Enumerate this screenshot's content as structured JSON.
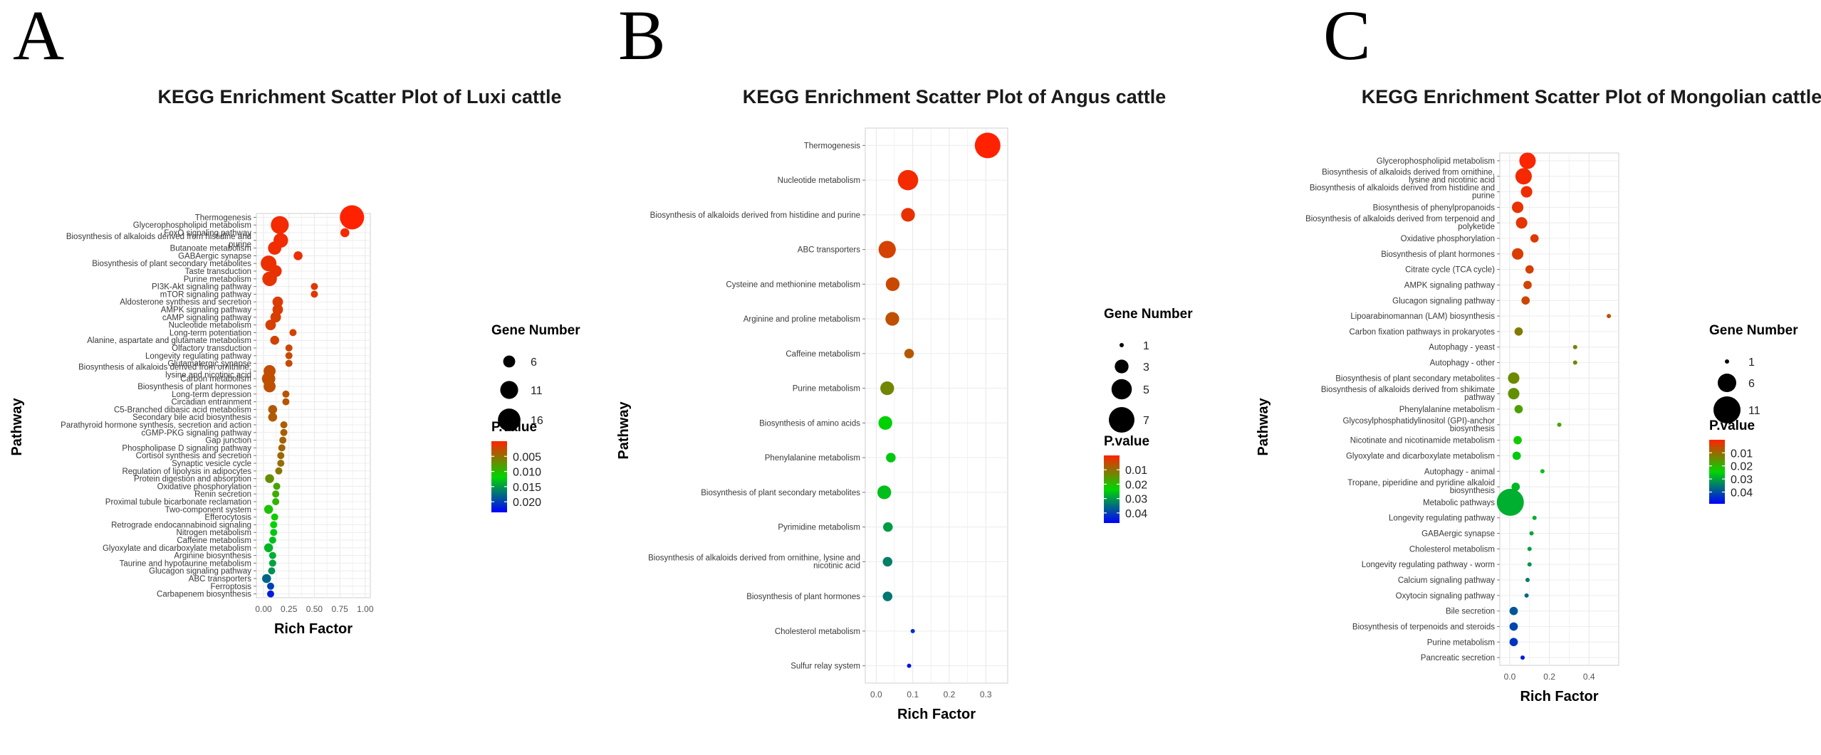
{
  "chart_data": [
    {
      "id": "A",
      "panel_label": "A",
      "type": "scatter",
      "title": "KEGG Enrichment Scatter Plot of Luxi cattle",
      "xlabel": "Rich Factor",
      "ylabel": "Pathway",
      "xlim": [
        -0.07,
        1.05
      ],
      "xticks": [
        0.0,
        0.25,
        0.5,
        0.75,
        1.0
      ],
      "xtick_labels": [
        "0.00",
        "0.25",
        "0.50",
        "0.75",
        "1.00"
      ],
      "size_legend": {
        "title": "Gene Number",
        "values": [
          6,
          11,
          16
        ]
      },
      "size_range": [
        3,
        18
      ],
      "color_legend": {
        "title": "P.value",
        "min": 0.0,
        "max": 0.0235,
        "ticks": [
          0.005,
          0.01,
          0.015,
          0.02
        ],
        "tick_labels": [
          "0.005",
          "0.010",
          "0.015",
          "0.020"
        ]
      },
      "points": [
        {
          "pathway": "Thermogenesis",
          "rich_factor": 0.87,
          "gene_number": 18,
          "pvalue": 0.0
        },
        {
          "pathway": "Glycerophospholipid metabolism",
          "rich_factor": 0.16,
          "gene_number": 11,
          "pvalue": 0.0005
        },
        {
          "pathway": "FoxO signaling pathway",
          "rich_factor": 0.8,
          "gene_number": 4,
          "pvalue": 0.0005
        },
        {
          "pathway": "Biosynthesis of alkaloids derived from histidine and purine",
          "rich_factor": 0.17,
          "gene_number": 8,
          "pvalue": 0.0006
        },
        {
          "pathway": "Butanoate metabolism",
          "rich_factor": 0.11,
          "gene_number": 7,
          "pvalue": 0.0007
        },
        {
          "pathway": "GABAergic synapse",
          "rich_factor": 0.34,
          "gene_number": 4,
          "pvalue": 0.0008
        },
        {
          "pathway": "Biosynthesis of plant secondary metabolites",
          "rich_factor": 0.05,
          "gene_number": 9,
          "pvalue": 0.0009
        },
        {
          "pathway": "Taste transduction",
          "rich_factor": 0.12,
          "gene_number": 6,
          "pvalue": 0.001
        },
        {
          "pathway": "Purine metabolism",
          "rich_factor": 0.06,
          "gene_number": 8,
          "pvalue": 0.0011
        },
        {
          "pathway": "PI3K-Akt signaling pathway",
          "rich_factor": 0.5,
          "gene_number": 3,
          "pvalue": 0.0014
        },
        {
          "pathway": "mTOR signaling pathway",
          "rich_factor": 0.5,
          "gene_number": 3,
          "pvalue": 0.0014
        },
        {
          "pathway": "Aldosterone synthesis and secretion",
          "rich_factor": 0.14,
          "gene_number": 5,
          "pvalue": 0.0016
        },
        {
          "pathway": "AMPK signaling pathway",
          "rich_factor": 0.14,
          "gene_number": 5,
          "pvalue": 0.0017
        },
        {
          "pathway": "cAMP signaling pathway",
          "rich_factor": 0.12,
          "gene_number": 5,
          "pvalue": 0.0018
        },
        {
          "pathway": "Nucleotide metabolism",
          "rich_factor": 0.07,
          "gene_number": 5,
          "pvalue": 0.0019
        },
        {
          "pathway": "Long-term potentiation",
          "rich_factor": 0.29,
          "gene_number": 3,
          "pvalue": 0.002
        },
        {
          "pathway": "Alanine, aspartate and glutamate metabolism",
          "rich_factor": 0.11,
          "gene_number": 4,
          "pvalue": 0.0021
        },
        {
          "pathway": "Olfactory transduction",
          "rich_factor": 0.25,
          "gene_number": 3,
          "pvalue": 0.0025
        },
        {
          "pathway": "Longevity regulating pathway",
          "rich_factor": 0.25,
          "gene_number": 3,
          "pvalue": 0.0026
        },
        {
          "pathway": "Glutamatergic synapse",
          "rich_factor": 0.25,
          "gene_number": 3,
          "pvalue": 0.0027
        },
        {
          "pathway": "Biosynthesis of alkaloids derived from ornithine, lysine and nicotinic acid",
          "rich_factor": 0.06,
          "gene_number": 6,
          "pvalue": 0.0028
        },
        {
          "pathway": "Carbon metabolism",
          "rich_factor": 0.05,
          "gene_number": 7,
          "pvalue": 0.0029
        },
        {
          "pathway": "Biosynthesis of plant hormones",
          "rich_factor": 0.06,
          "gene_number": 6,
          "pvalue": 0.003
        },
        {
          "pathway": "Long-term depression",
          "rich_factor": 0.22,
          "gene_number": 3,
          "pvalue": 0.0032
        },
        {
          "pathway": "Circadian entrainment",
          "rich_factor": 0.22,
          "gene_number": 3,
          "pvalue": 0.0033
        },
        {
          "pathway": "C5-Branched dibasic acid metabolism",
          "rich_factor": 0.09,
          "gene_number": 4,
          "pvalue": 0.0036
        },
        {
          "pathway": "Secondary bile acid biosynthesis",
          "rich_factor": 0.09,
          "gene_number": 4,
          "pvalue": 0.0037
        },
        {
          "pathway": "Parathyroid hormone synthesis, secretion and action",
          "rich_factor": 0.2,
          "gene_number": 3,
          "pvalue": 0.0038
        },
        {
          "pathway": "cGMP-PKG signaling pathway",
          "rich_factor": 0.2,
          "gene_number": 3,
          "pvalue": 0.004
        },
        {
          "pathway": "Gap junction",
          "rich_factor": 0.19,
          "gene_number": 3,
          "pvalue": 0.0042
        },
        {
          "pathway": "Phospholipase D signaling pathway",
          "rich_factor": 0.18,
          "gene_number": 3,
          "pvalue": 0.0044
        },
        {
          "pathway": "Cortisol synthesis and secretion",
          "rich_factor": 0.17,
          "gene_number": 3,
          "pvalue": 0.0046
        },
        {
          "pathway": "Synaptic vesicle cycle",
          "rich_factor": 0.17,
          "gene_number": 3,
          "pvalue": 0.0048
        },
        {
          "pathway": "Regulation of lipolysis in adipocytes",
          "rich_factor": 0.15,
          "gene_number": 3,
          "pvalue": 0.0055
        },
        {
          "pathway": "Protein digestion and absorption",
          "rich_factor": 0.06,
          "gene_number": 4,
          "pvalue": 0.007
        },
        {
          "pathway": "Oxidative phosphorylation",
          "rich_factor": 0.13,
          "gene_number": 3,
          "pvalue": 0.0085
        },
        {
          "pathway": "Renin secretion",
          "rich_factor": 0.12,
          "gene_number": 3,
          "pvalue": 0.009
        },
        {
          "pathway": "Proximal tubule bicarbonate reclamation",
          "rich_factor": 0.12,
          "gene_number": 3,
          "pvalue": 0.0095
        },
        {
          "pathway": "Two-component system",
          "rich_factor": 0.05,
          "gene_number": 4,
          "pvalue": 0.0105
        },
        {
          "pathway": "Efferocytosis",
          "rich_factor": 0.11,
          "gene_number": 3,
          "pvalue": 0.011
        },
        {
          "pathway": "Retrograde endocannabinoid signaling",
          "rich_factor": 0.1,
          "gene_number": 3,
          "pvalue": 0.0115
        },
        {
          "pathway": "Nitrogen metabolism",
          "rich_factor": 0.1,
          "gene_number": 3,
          "pvalue": 0.0125
        },
        {
          "pathway": "Caffeine metabolism",
          "rich_factor": 0.09,
          "gene_number": 3,
          "pvalue": 0.013
        },
        {
          "pathway": "Glyoxylate and dicarboxylate metabolism",
          "rich_factor": 0.05,
          "gene_number": 4,
          "pvalue": 0.0135
        },
        {
          "pathway": "Arginine biosynthesis",
          "rich_factor": 0.09,
          "gene_number": 3,
          "pvalue": 0.014
        },
        {
          "pathway": "Taurine and hypotaurine metabolism",
          "rich_factor": 0.09,
          "gene_number": 3,
          "pvalue": 0.0145
        },
        {
          "pathway": "Glucagon signaling pathway",
          "rich_factor": 0.08,
          "gene_number": 3,
          "pvalue": 0.0155
        },
        {
          "pathway": "ABC transporters",
          "rich_factor": 0.03,
          "gene_number": 4,
          "pvalue": 0.018
        },
        {
          "pathway": "Ferroptosis",
          "rich_factor": 0.07,
          "gene_number": 3,
          "pvalue": 0.02
        },
        {
          "pathway": "Carbapenem biosynthesis",
          "rich_factor": 0.07,
          "gene_number": 3,
          "pvalue": 0.022
        }
      ]
    },
    {
      "id": "B",
      "panel_label": "B",
      "type": "scatter",
      "title": "KEGG Enrichment Scatter Plot of Angus cattle",
      "xlabel": "Rich Factor",
      "ylabel": "Pathway",
      "xlim": [
        -0.03,
        0.36
      ],
      "xticks": [
        0.0,
        0.1,
        0.2,
        0.3
      ],
      "xtick_labels": [
        "0.0",
        "0.1",
        "0.2",
        "0.3"
      ],
      "size_legend": {
        "title": "Gene Number",
        "values": [
          1,
          3,
          5,
          7
        ]
      },
      "size_range": [
        1,
        7
      ],
      "color_legend": {
        "title": "P.value",
        "min": 0.0,
        "max": 0.047,
        "ticks": [
          0.01,
          0.02,
          0.03,
          0.04
        ],
        "tick_labels": [
          "0.01",
          "0.02",
          "0.03",
          "0.04"
        ]
      },
      "points": [
        {
          "pathway": "Thermogenesis",
          "rich_factor": 0.305,
          "gene_number": 7,
          "pvalue": 0.0
        },
        {
          "pathway": "Nucleotide metabolism",
          "rich_factor": 0.087,
          "gene_number": 5,
          "pvalue": 0.001
        },
        {
          "pathway": "Biosynthesis of alkaloids derived from histidine and purine",
          "rich_factor": 0.087,
          "gene_number": 3,
          "pvalue": 0.002
        },
        {
          "pathway": "ABC transporters",
          "rich_factor": 0.03,
          "gene_number": 4,
          "pvalue": 0.004
        },
        {
          "pathway": "Cysteine and methionine metabolism",
          "rich_factor": 0.045,
          "gene_number": 3,
          "pvalue": 0.005
        },
        {
          "pathway": "Arginine and proline metabolism",
          "rich_factor": 0.044,
          "gene_number": 3,
          "pvalue": 0.006
        },
        {
          "pathway": "Caffeine metabolism",
          "rich_factor": 0.09,
          "gene_number": 2,
          "pvalue": 0.007
        },
        {
          "pathway": "Purine metabolism",
          "rich_factor": 0.03,
          "gene_number": 3,
          "pvalue": 0.013
        },
        {
          "pathway": "Biosynthesis of amino acids",
          "rich_factor": 0.025,
          "gene_number": 3,
          "pvalue": 0.024
        },
        {
          "pathway": "Phenylalanine metabolism",
          "rich_factor": 0.04,
          "gene_number": 2,
          "pvalue": 0.025
        },
        {
          "pathway": "Biosynthesis of plant secondary metabolites",
          "rich_factor": 0.022,
          "gene_number": 3,
          "pvalue": 0.026
        },
        {
          "pathway": "Pyrimidine metabolism",
          "rich_factor": 0.032,
          "gene_number": 2,
          "pvalue": 0.03
        },
        {
          "pathway": "Biosynthesis of alkaloids derived from ornithine, lysine and nicotinic acid",
          "rich_factor": 0.031,
          "gene_number": 2,
          "pvalue": 0.033
        },
        {
          "pathway": "Biosynthesis of plant hormones",
          "rich_factor": 0.031,
          "gene_number": 2,
          "pvalue": 0.034
        },
        {
          "pathway": "Cholesterol metabolism",
          "rich_factor": 0.1,
          "gene_number": 1,
          "pvalue": 0.042
        },
        {
          "pathway": "Sulfur relay system",
          "rich_factor": 0.09,
          "gene_number": 1,
          "pvalue": 0.045
        }
      ]
    },
    {
      "id": "C",
      "panel_label": "C",
      "type": "scatter",
      "title": "KEGG Enrichment Scatter Plot of Mongolian cattle",
      "xlabel": "Rich Factor",
      "ylabel": "Pathway",
      "xlim": [
        -0.05,
        0.55
      ],
      "xticks": [
        0.0,
        0.2,
        0.4
      ],
      "xtick_labels": [
        "0.0",
        "0.2",
        "0.4"
      ],
      "size_legend": {
        "title": "Gene Number",
        "values": [
          1,
          6,
          11
        ]
      },
      "size_range": [
        1,
        11
      ],
      "color_legend": {
        "title": "P.value",
        "min": 0.0,
        "max": 0.049,
        "ticks": [
          0.01,
          0.02,
          0.03,
          0.04
        ],
        "tick_labels": [
          "0.01",
          "0.02",
          "0.03",
          "0.04"
        ]
      },
      "points": [
        {
          "pathway": "Glycerophospholipid metabolism",
          "rich_factor": 0.09,
          "gene_number": 5,
          "pvalue": 0.0005
        },
        {
          "pathway": "Biosynthesis of alkaloids derived from ornithine, lysine and nicotinic acid",
          "rich_factor": 0.07,
          "gene_number": 5,
          "pvalue": 0.001
        },
        {
          "pathway": "Biosynthesis of alkaloids derived from histidine and purine",
          "rich_factor": 0.085,
          "gene_number": 3,
          "pvalue": 0.0015
        },
        {
          "pathway": "Biosynthesis of phenylpropanoids",
          "rich_factor": 0.04,
          "gene_number": 3,
          "pvalue": 0.002
        },
        {
          "pathway": "Biosynthesis of alkaloids derived from terpenoid and polyketide",
          "rich_factor": 0.06,
          "gene_number": 3,
          "pvalue": 0.0025
        },
        {
          "pathway": "Oxidative phosphorylation",
          "rich_factor": 0.125,
          "gene_number": 2,
          "pvalue": 0.003
        },
        {
          "pathway": "Biosynthesis of plant hormones",
          "rich_factor": 0.04,
          "gene_number": 3,
          "pvalue": 0.0035
        },
        {
          "pathway": "Citrate cycle (TCA cycle)",
          "rich_factor": 0.1,
          "gene_number": 2,
          "pvalue": 0.004
        },
        {
          "pathway": "AMPK signaling pathway",
          "rich_factor": 0.09,
          "gene_number": 2,
          "pvalue": 0.0045
        },
        {
          "pathway": "Glucagon signaling pathway",
          "rich_factor": 0.08,
          "gene_number": 2,
          "pvalue": 0.005
        },
        {
          "pathway": "Lipoarabinomannan (LAM) biosynthesis",
          "rich_factor": 0.5,
          "gene_number": 1,
          "pvalue": 0.006
        },
        {
          "pathway": "Carbon fixation pathways in prokaryotes",
          "rich_factor": 0.045,
          "gene_number": 2,
          "pvalue": 0.012
        },
        {
          "pathway": "Autophagy - yeast",
          "rich_factor": 0.33,
          "gene_number": 1,
          "pvalue": 0.013
        },
        {
          "pathway": "Autophagy - other",
          "rich_factor": 0.33,
          "gene_number": 1,
          "pvalue": 0.013
        },
        {
          "pathway": "Biosynthesis of plant secondary metabolites",
          "rich_factor": 0.02,
          "gene_number": 3,
          "pvalue": 0.014
        },
        {
          "pathway": "Biosynthesis of alkaloids derived from shikimate pathway",
          "rich_factor": 0.02,
          "gene_number": 3,
          "pvalue": 0.015
        },
        {
          "pathway": "Phenylalanine metabolism",
          "rich_factor": 0.045,
          "gene_number": 2,
          "pvalue": 0.017
        },
        {
          "pathway": "Glycosylphosphatidylinositol (GPI)-anchor biosynthesis",
          "rich_factor": 0.25,
          "gene_number": 1,
          "pvalue": 0.018
        },
        {
          "pathway": "Nicotinate and nicotinamide metabolism",
          "rich_factor": 0.04,
          "gene_number": 2,
          "pvalue": 0.023
        },
        {
          "pathway": "Glyoxylate and dicarboxylate metabolism",
          "rich_factor": 0.035,
          "gene_number": 2,
          "pvalue": 0.026
        },
        {
          "pathway": "Autophagy - animal",
          "rich_factor": 0.165,
          "gene_number": 1,
          "pvalue": 0.027
        },
        {
          "pathway": "Tropane, piperidine and pyridine alkaloid biosynthesis",
          "rich_factor": 0.03,
          "gene_number": 2,
          "pvalue": 0.028
        },
        {
          "pathway": "Metabolic pathways",
          "rich_factor": 0.003,
          "gene_number": 11,
          "pvalue": 0.029
        },
        {
          "pathway": "Longevity regulating pathway",
          "rich_factor": 0.125,
          "gene_number": 1,
          "pvalue": 0.029
        },
        {
          "pathway": "GABAergic synapse",
          "rich_factor": 0.11,
          "gene_number": 1,
          "pvalue": 0.03
        },
        {
          "pathway": "Cholesterol metabolism",
          "rich_factor": 0.1,
          "gene_number": 1,
          "pvalue": 0.031
        },
        {
          "pathway": "Longevity regulating pathway - worm",
          "rich_factor": 0.1,
          "gene_number": 1,
          "pvalue": 0.032
        },
        {
          "pathway": "Calcium signaling pathway",
          "rich_factor": 0.09,
          "gene_number": 1,
          "pvalue": 0.035
        },
        {
          "pathway": "Oxytocin signaling pathway",
          "rich_factor": 0.085,
          "gene_number": 1,
          "pvalue": 0.037
        },
        {
          "pathway": "Bile secretion",
          "rich_factor": 0.02,
          "gene_number": 2,
          "pvalue": 0.039
        },
        {
          "pathway": "Biosynthesis of terpenoids and steroids",
          "rich_factor": 0.02,
          "gene_number": 2,
          "pvalue": 0.041
        },
        {
          "pathway": "Purine metabolism",
          "rich_factor": 0.02,
          "gene_number": 2,
          "pvalue": 0.043
        },
        {
          "pathway": "Pancreatic secretion",
          "rich_factor": 0.065,
          "gene_number": 1,
          "pvalue": 0.046
        }
      ]
    }
  ]
}
